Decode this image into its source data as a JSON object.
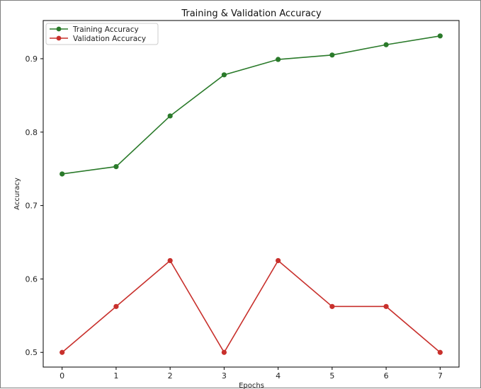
{
  "chart_data": {
    "type": "line",
    "title": "Training & Validation Accuracy",
    "xlabel": "Epochs",
    "ylabel": "Accuracy",
    "x": [
      0,
      1,
      2,
      3,
      4,
      5,
      6,
      7
    ],
    "xlim": [
      -0.35,
      7.35
    ],
    "ylim": [
      0.48,
      0.952
    ],
    "xticks": [
      0,
      1,
      2,
      3,
      4,
      5,
      6,
      7
    ],
    "yticks": [
      0.5,
      0.6,
      0.7,
      0.8,
      0.9
    ],
    "ytick_labels": [
      "0.5",
      "0.6",
      "0.7",
      "0.8",
      "0.9"
    ],
    "grid": false,
    "legend_position": "top-left",
    "series": [
      {
        "name": "Training Accuracy",
        "color": "#2a7a2a",
        "values": [
          0.743,
          0.753,
          0.822,
          0.878,
          0.899,
          0.905,
          0.919,
          0.931
        ]
      },
      {
        "name": "Validation Accuracy",
        "color": "#c8302c",
        "values": [
          0.5,
          0.5625,
          0.625,
          0.5,
          0.625,
          0.5625,
          0.5625,
          0.5
        ]
      }
    ]
  }
}
